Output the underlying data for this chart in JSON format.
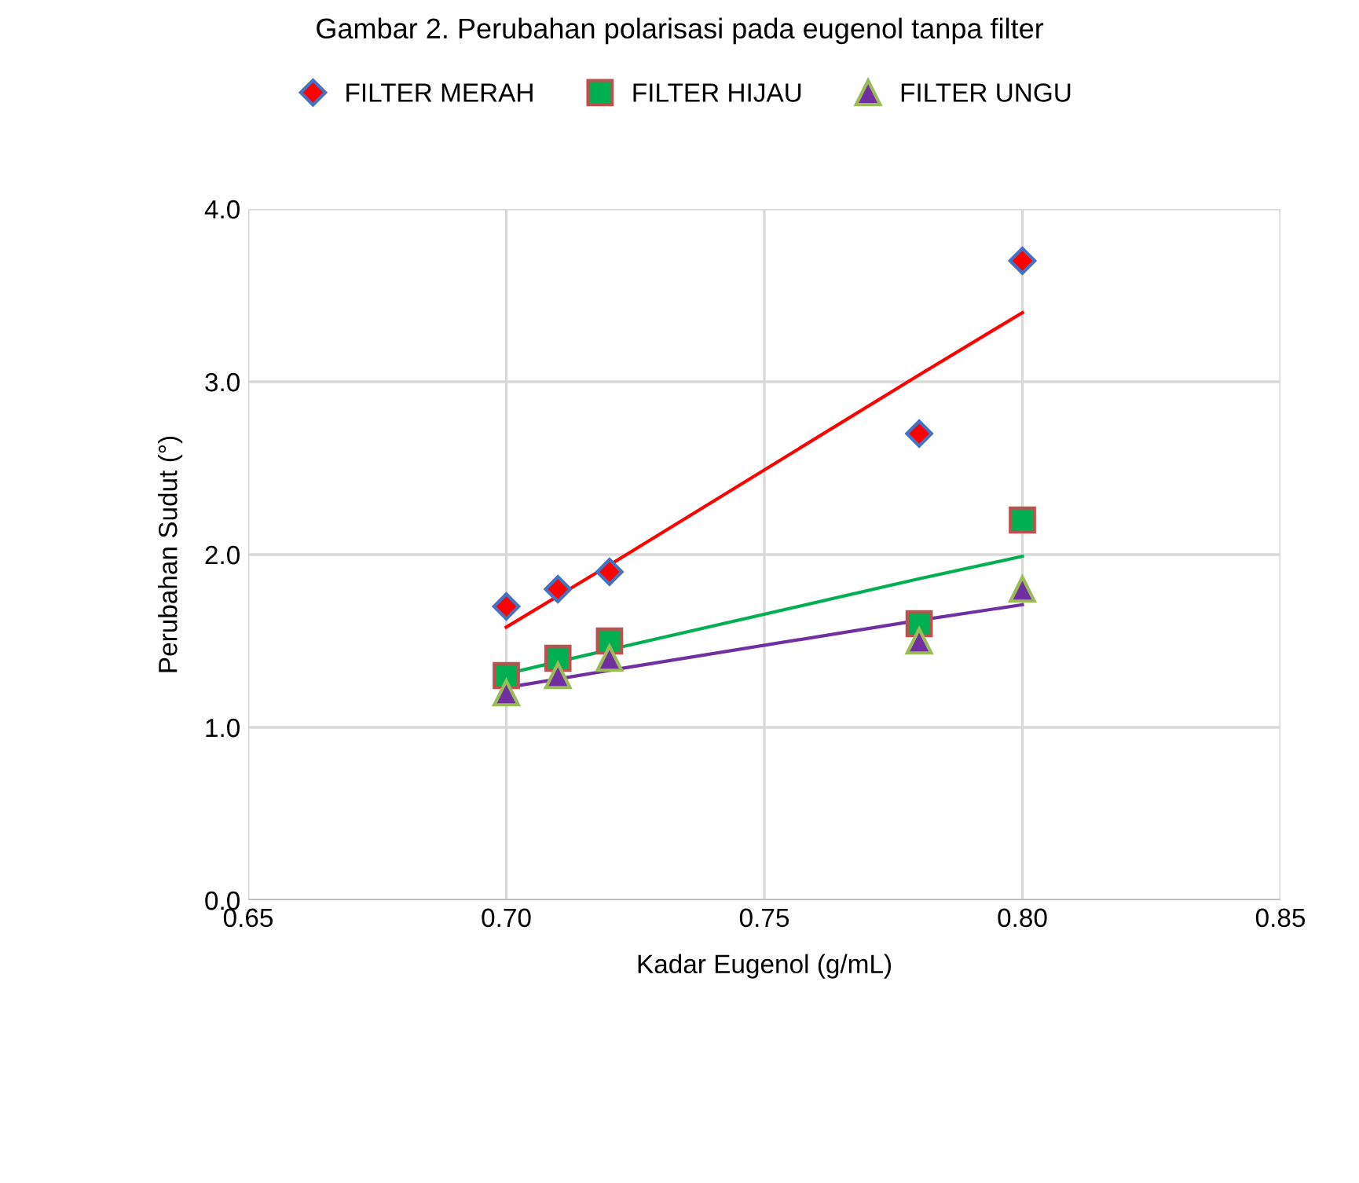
{
  "chart_data": {
    "type": "scatter",
    "title": "Gambar 2. Perubahan polarisasi pada eugenol tanpa filter",
    "xlabel": "Kadar Eugenol (g/mL)",
    "ylabel": "Perubahan Sudut (°)",
    "x": [
      0.7,
      0.71,
      0.72,
      0.78,
      0.8
    ],
    "series": [
      {
        "name": "FILTER MERAH",
        "color": "#ff0000",
        "marker": "diamond",
        "values": [
          1.7,
          1.8,
          1.9,
          2.7,
          3.7
        ]
      },
      {
        "name": "FILTER HIJAU",
        "color": "#00b050",
        "marker": "square",
        "values": [
          1.3,
          1.4,
          1.5,
          1.6,
          2.2
        ]
      },
      {
        "name": "FILTER UNGU",
        "color": "#7030a0",
        "marker": "triangle",
        "values": [
          1.2,
          1.3,
          1.4,
          1.5,
          1.8
        ]
      },
      {
        "type": "line",
        "color": "#ff0000",
        "values": [
          1.58,
          1.76,
          1.94,
          3.04,
          3.4
        ]
      },
      {
        "type": "line",
        "color": "#00b050",
        "values": [
          1.31,
          1.38,
          1.45,
          1.86,
          1.99
        ]
      },
      {
        "type": "line",
        "color": "#7030a0",
        "values": [
          1.23,
          1.28,
          1.33,
          1.62,
          1.71
        ]
      }
    ],
    "xlim": [
      0.65,
      0.85
    ],
    "xticks": [
      {
        "value": 0.65,
        "label": "0.65"
      },
      {
        "value": 0.7,
        "label": "0.70"
      },
      {
        "value": 0.75,
        "label": "0.75"
      },
      {
        "value": 0.8,
        "label": "0.80"
      },
      {
        "value": 0.85,
        "label": "0.85"
      }
    ],
    "ylim": [
      0,
      4
    ],
    "yticks": [
      {
        "value": 0,
        "label": "0.0"
      },
      {
        "value": 1,
        "label": "1.0"
      },
      {
        "value": 2,
        "label": "2.0"
      },
      {
        "value": 3,
        "label": "3.0"
      },
      {
        "value": 4,
        "label": "4.0"
      }
    ],
    "grid": true,
    "legend": "top"
  }
}
